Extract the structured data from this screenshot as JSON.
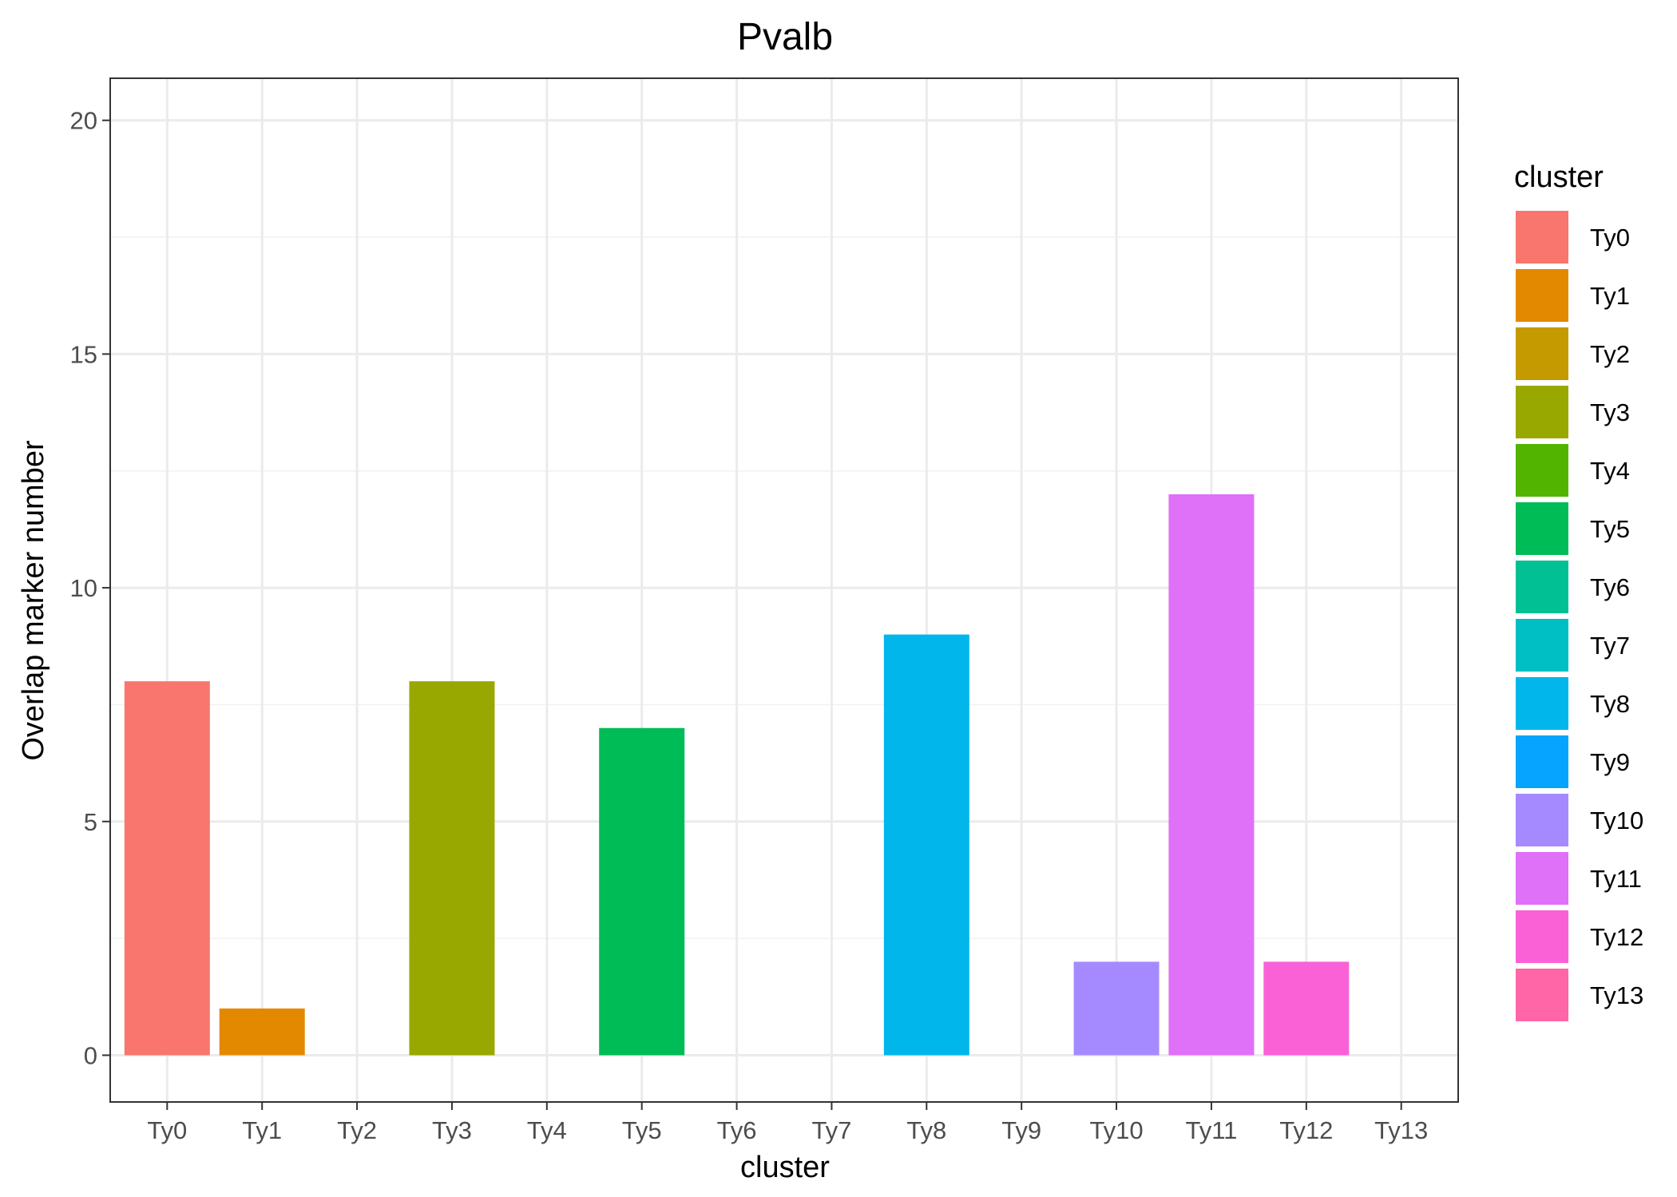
{
  "chart_data": {
    "type": "bar",
    "title": "Pvalb",
    "xlabel": "cluster",
    "ylabel": "Overlap marker number",
    "categories": [
      "Ty0",
      "Ty1",
      "Ty2",
      "Ty3",
      "Ty4",
      "Ty5",
      "Ty6",
      "Ty7",
      "Ty8",
      "Ty9",
      "Ty10",
      "Ty11",
      "Ty12",
      "Ty13"
    ],
    "values": [
      8,
      1,
      0,
      8,
      0,
      7,
      0,
      0,
      9,
      0,
      2,
      12,
      2,
      0
    ],
    "colors": [
      "#F8766D",
      "#E38900",
      "#C49A00",
      "#99A800",
      "#53B400",
      "#00BC56",
      "#00C094",
      "#00BFC4",
      "#00B6EB",
      "#06A4FF",
      "#A58AFF",
      "#DF70F8",
      "#FB61D7",
      "#FF66A8"
    ],
    "ylim": [
      -1,
      20.9
    ],
    "yticks": [
      0,
      5,
      10,
      15,
      20
    ],
    "grid": true,
    "legend": {
      "title": "cluster",
      "position": "right"
    }
  }
}
